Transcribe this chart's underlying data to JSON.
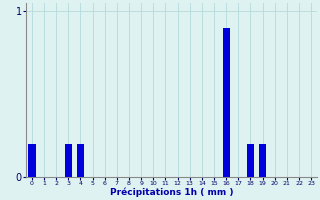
{
  "hours": [
    0,
    1,
    2,
    3,
    4,
    5,
    6,
    7,
    8,
    9,
    10,
    11,
    12,
    13,
    14,
    15,
    16,
    17,
    18,
    19,
    20,
    21,
    22,
    23
  ],
  "values": [
    0.2,
    0,
    0,
    0.2,
    0.2,
    0,
    0,
    0,
    0,
    0,
    0,
    0,
    0,
    0,
    0,
    0,
    0.9,
    0,
    0.2,
    0.2,
    0,
    0,
    0,
    0
  ],
  "bar_color": "#0000dd",
  "bg_color": "#dff2f2",
  "grid_color": "#aacccc",
  "ytick_color": "#000066",
  "xtick_color": "#000066",
  "xlabel": "Précipitations 1h ( mm )",
  "xlabel_color": "#0000aa",
  "ylim_max": 1.05,
  "yticks": [
    0,
    1
  ],
  "bar_width": 0.6,
  "grid_line_color": "#bbdddd"
}
